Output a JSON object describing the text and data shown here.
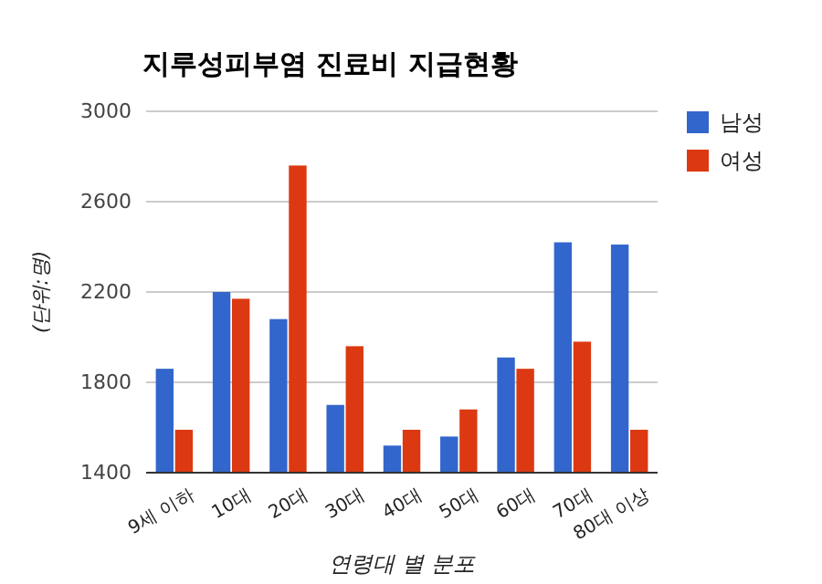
{
  "chart_data": {
    "type": "bar",
    "title": "지루성피부염 진료비 지급현황",
    "xlabel": "연령대 별 분포",
    "ylabel": "(단위:명)",
    "categories": [
      "9세 이하",
      "10대",
      "20대",
      "30대",
      "40대",
      "50대",
      "60대",
      "70대",
      "80대 이상"
    ],
    "series": [
      {
        "name": "남성",
        "color": "#3366cc",
        "values": [
          1860,
          2200,
          2080,
          1700,
          1520,
          1560,
          1910,
          2420,
          2410
        ]
      },
      {
        "name": "여성",
        "color": "#dc3912",
        "values": [
          1590,
          2170,
          2760,
          1960,
          1590,
          1680,
          1860,
          1980,
          1590
        ]
      }
    ],
    "ylim": [
      1400,
      3000
    ],
    "yticks": [
      1400,
      1800,
      2200,
      2600,
      3000
    ],
    "grid": "y",
    "legend": "top right"
  }
}
